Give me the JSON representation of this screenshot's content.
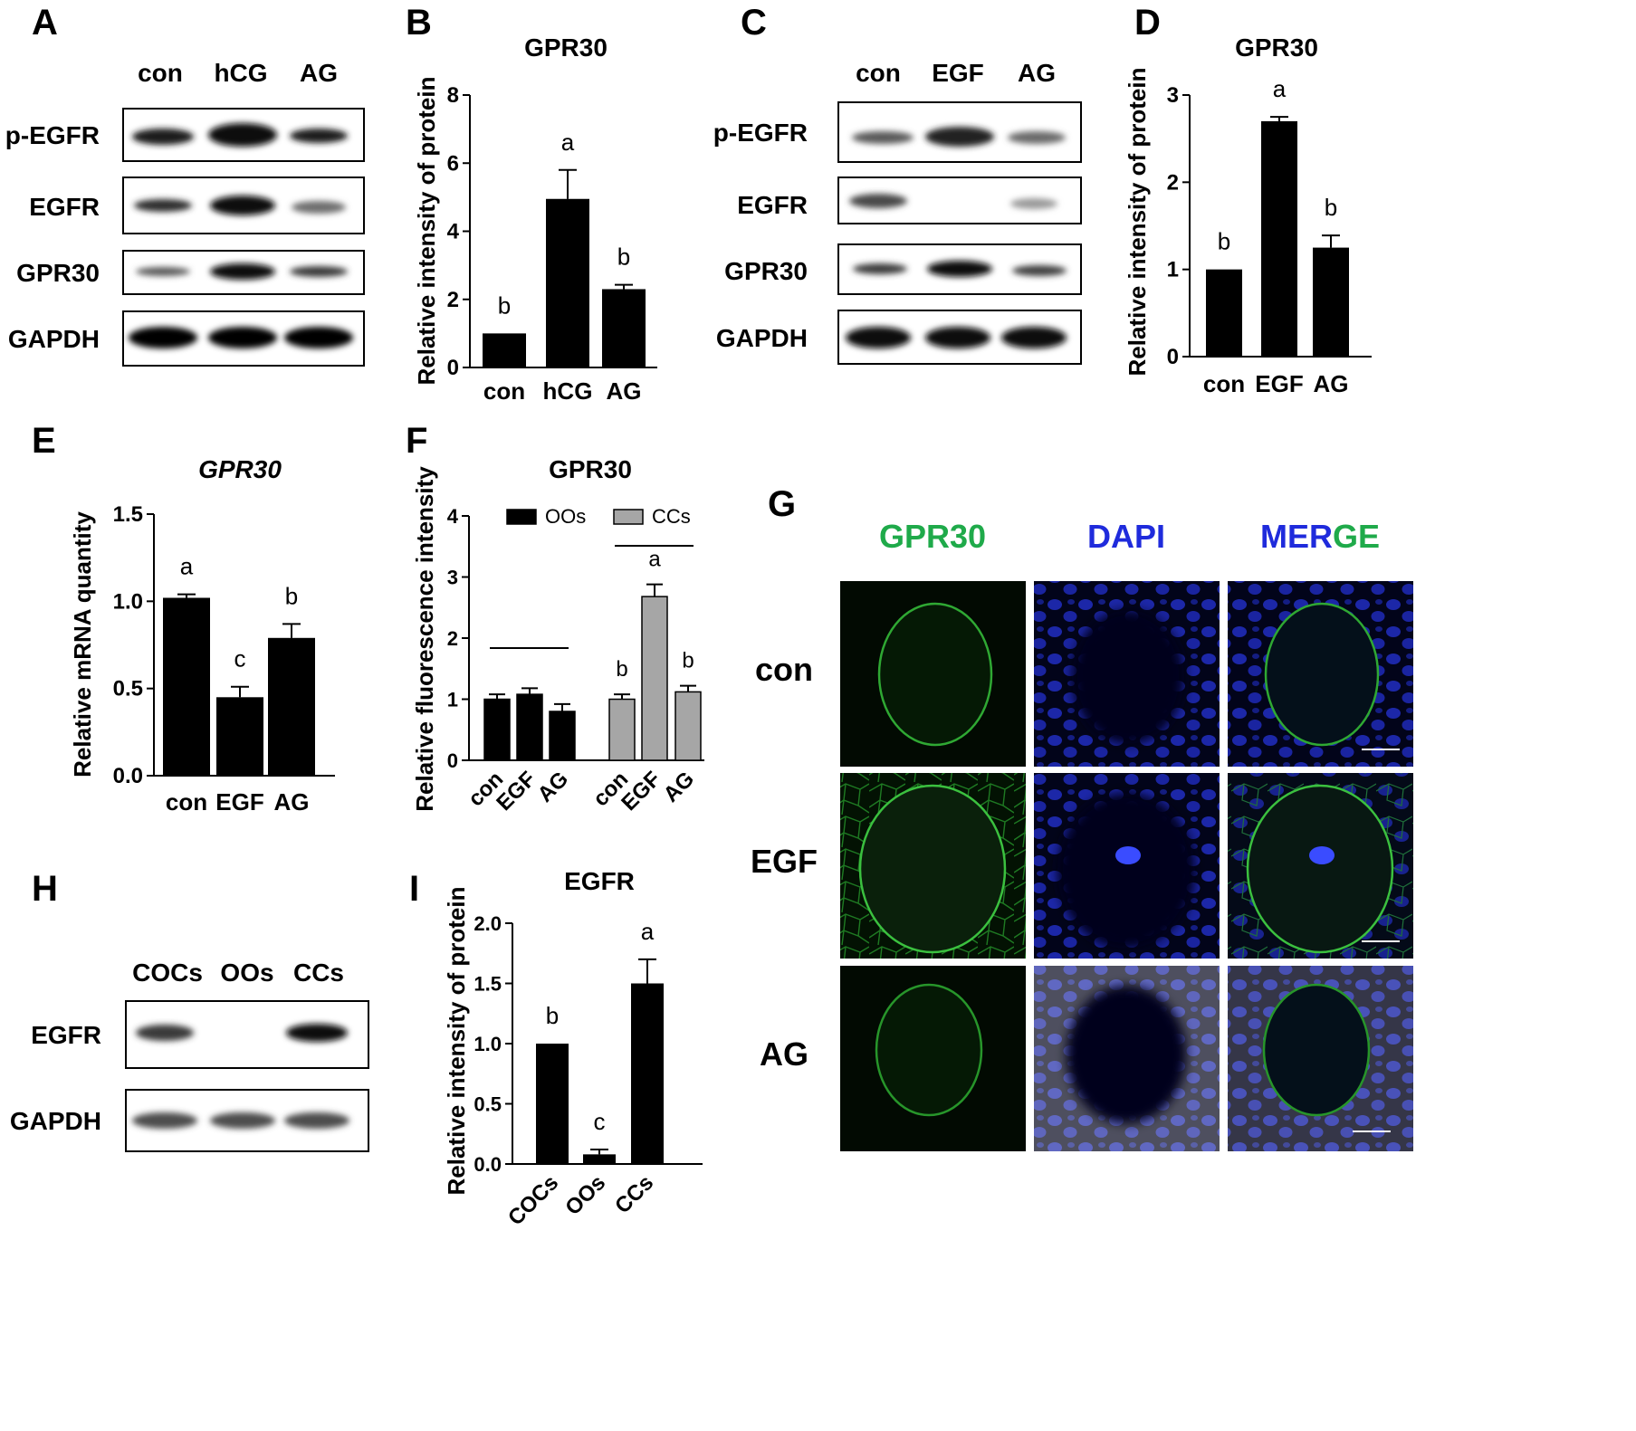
{
  "panels": {
    "A": "A",
    "B": "B",
    "C": "C",
    "D": "D",
    "E": "E",
    "F": "F",
    "G": "G",
    "H": "H",
    "I": "I"
  },
  "blot_A": {
    "lanes": [
      "con",
      "hCG",
      "AG"
    ],
    "rows": [
      "p-EGFR",
      "EGFR",
      "GPR30",
      "GAPDH"
    ]
  },
  "blot_C": {
    "lanes": [
      "con",
      "EGF",
      "AG"
    ],
    "rows": [
      "p-EGFR",
      "EGFR",
      "GPR30",
      "GAPDH"
    ]
  },
  "blot_H": {
    "lanes": [
      "COCs",
      "OOs",
      "CCs"
    ],
    "rows": [
      "EGFR",
      "GAPDH"
    ]
  },
  "imaging_G": {
    "columns": [
      "GPR30",
      "DAPI",
      "MERGE"
    ],
    "merge_letters": [
      {
        "t": "M",
        "c": "#1f2bdc"
      },
      {
        "t": "E",
        "c": "#1f2bdc"
      },
      {
        "t": "R",
        "c": "#1f2bdc"
      },
      {
        "t": "G",
        "c": "#1faa4a"
      },
      {
        "t": "E",
        "c": "#1faa4a"
      }
    ],
    "rows": [
      "con",
      "EGF",
      "AG"
    ],
    "colors": {
      "green": "#1faa4a",
      "blue": "#1f2bdc"
    }
  },
  "chart_data": [
    {
      "panel": "B",
      "type": "bar",
      "title": "GPR30",
      "ylabel": "Relative intensity of protein",
      "ylim": [
        0,
        8
      ],
      "yticks": [
        0,
        2,
        4,
        6,
        8
      ],
      "categories": [
        "con",
        "hCG",
        "AG"
      ],
      "values": [
        1.0,
        4.95,
        2.3
      ],
      "errors": [
        0,
        0.85,
        0.13
      ],
      "letters": [
        "b",
        "a",
        "b"
      ]
    },
    {
      "panel": "D",
      "type": "bar",
      "title": "GPR30",
      "ylabel": "Relative intensity of protein",
      "ylim": [
        0,
        3
      ],
      "yticks": [
        0,
        1,
        2,
        3
      ],
      "categories": [
        "con",
        "EGF",
        "AG"
      ],
      "values": [
        1.0,
        2.7,
        1.25
      ],
      "errors": [
        0,
        0.05,
        0.14
      ],
      "letters": [
        "b",
        "a",
        "b"
      ]
    },
    {
      "panel": "E",
      "type": "bar",
      "title": "GPR30",
      "ylabel": "Relative mRNA quantity",
      "ylim": [
        0,
        1.5
      ],
      "yticks": [
        "0.0",
        "0.5",
        "1.0",
        "1.5"
      ],
      "categories": [
        "con",
        "EGF",
        "AG"
      ],
      "values": [
        1.02,
        0.45,
        0.79
      ],
      "errors": [
        0.02,
        0.06,
        0.08
      ],
      "letters": [
        "a",
        "c",
        "b"
      ]
    },
    {
      "panel": "F",
      "type": "bar",
      "title": "GPR30",
      "ylabel": "Relative fluorescence intensity",
      "ylim": [
        0,
        4
      ],
      "yticks": [
        0,
        1,
        2,
        3,
        4
      ],
      "categories": [
        "con",
        "EGF",
        "AG"
      ],
      "legend_position": "top",
      "series": [
        {
          "name": "OOs",
          "color": "#000000",
          "values": [
            1.0,
            1.08,
            0.8
          ],
          "errors": [
            0.08,
            0.1,
            0.12
          ],
          "letters": [
            "",
            "",
            ""
          ]
        },
        {
          "name": "CCs",
          "color": "#a6a6a6",
          "values": [
            1.0,
            2.68,
            1.12
          ],
          "errors": [
            0.08,
            0.2,
            0.1
          ],
          "letters": [
            "b",
            "a",
            "b"
          ]
        }
      ]
    },
    {
      "panel": "I",
      "type": "bar",
      "title": "EGFR",
      "ylabel": "Relative intensity of protein",
      "ylim": [
        0,
        2.0
      ],
      "yticks": [
        "0.0",
        "0.5",
        "1.0",
        "1.5",
        "2.0"
      ],
      "categories": [
        "COCs",
        "OOs",
        "CCs"
      ],
      "values": [
        1.0,
        0.08,
        1.5
      ],
      "errors": [
        0,
        0.04,
        0.2
      ],
      "letters": [
        "b",
        "c",
        "a"
      ]
    }
  ]
}
